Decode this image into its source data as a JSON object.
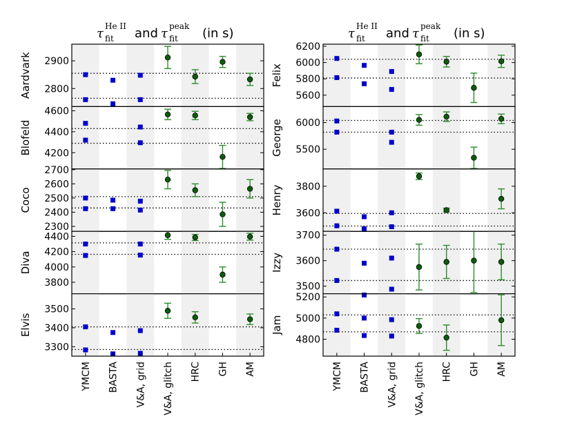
{
  "chart_data": {
    "type": "scatter",
    "title_parts": {
      "tau": "τ",
      "sub": "fit",
      "sup_he": "He II",
      "and": "and",
      "sup_peak": "peak",
      "units": "(in s)"
    },
    "categories": [
      "YMCM",
      "BASTA",
      "V&A, grid",
      "V&A, glitch",
      "HRC",
      "GH",
      "AM"
    ],
    "shaded_columns": [
      0,
      2,
      4,
      6
    ],
    "colors": {
      "he_marker": "#0000cc",
      "peak_marker": "#0d5c0d",
      "peak_errorbar": "#2a8c2a",
      "shade": "#f0f0f0"
    },
    "columns": [
      {
        "name": "left",
        "panels": [
          {
            "star": "Aardvark",
            "ylim": [
              2735,
              2960
            ],
            "yticks": [
              2800,
              2900
            ],
            "ref_lines": [
              2855,
              2765
            ],
            "he_values": [
              [
                2850,
                2760
              ],
              [
                2830,
                2745
              ],
              [
                2848,
                2760
              ],
              null,
              null,
              null,
              null
            ],
            "peak_values": [
              null,
              null,
              null,
              [
                2912,
                40
              ],
              [
                2843,
                25
              ],
              [
                2896,
                20
              ],
              [
                2833,
                22
              ]
            ]
          },
          {
            "star": "Blofeld",
            "ylim": [
              4045,
              4640
            ],
            "yticks": [
              4200,
              4400,
              4600
            ],
            "ref_lines": [
              4430,
              4290
            ],
            "he_values": [
              [
                4480,
                4320
              ],
              null,
              [
                4445,
                4295
              ],
              null,
              null,
              null,
              null
            ],
            "peak_values": [
              null,
              null,
              null,
              [
                4565,
                50
              ],
              [
                4555,
                40
              ],
              [
                4160,
                110
              ],
              [
                4540,
                35
              ]
            ]
          },
          {
            "star": "Coco",
            "ylim": [
              2265,
              2705
            ],
            "yticks": [
              2300,
              2400,
              2500,
              2600,
              2700
            ],
            "ref_lines": [
              2510,
              2430
            ],
            "he_values": [
              [
                2500,
                2425
              ],
              [
                2485,
                2425
              ],
              [
                2478,
                2415
              ],
              null,
              null,
              null,
              null
            ],
            "peak_values": [
              null,
              null,
              null,
              [
                2630,
                65
              ],
              [
                2555,
                45
              ],
              [
                2385,
                85
              ],
              [
                2565,
                65
              ]
            ]
          },
          {
            "star": "Diva",
            "ylim": [
              3650,
              4465
            ],
            "yticks": [
              3800,
              4000,
              4200,
              4400
            ],
            "ref_lines": [
              4315,
              4165
            ],
            "he_values": [
              [
                4300,
                4150
              ],
              null,
              [
                4300,
                4155
              ],
              null,
              null,
              null,
              null
            ],
            "peak_values": [
              null,
              null,
              null,
              [
                4415,
                55
              ],
              [
                4385,
                40
              ],
              [
                3900,
                100
              ],
              [
                4395,
                45
              ]
            ]
          },
          {
            "star": "Elvis",
            "ylim": [
              3250,
              3580
            ],
            "yticks": [
              3300,
              3400,
              3500
            ],
            "ref_lines": [
              3405,
              3285
            ],
            "he_values": [
              [
                3405,
                3283
              ],
              [
                3375,
                3262
              ],
              [
                3385,
                3265
              ],
              null,
              null,
              null,
              null
            ],
            "peak_values": [
              null,
              null,
              null,
              [
                3490,
                40
              ],
              [
                3455,
                30
              ],
              null,
              [
                3445,
                28
              ]
            ]
          }
        ]
      },
      {
        "name": "right",
        "panels": [
          {
            "star": "Felix",
            "ylim": [
              5460,
              6225
            ],
            "yticks": [
              5600,
              5800,
              6000,
              6200
            ],
            "ref_lines": [
              6040,
              5810
            ],
            "he_values": [
              [
                6050,
                5815
              ],
              [
                5965,
                5740
              ],
              [
                5890,
                5670
              ],
              null,
              null,
              null,
              null
            ],
            "peak_values": [
              null,
              null,
              null,
              [
                6100,
                115
              ],
              [
                6010,
                65
              ],
              [
                5690,
                180
              ],
              [
                6015,
                75
              ]
            ]
          },
          {
            "star": "George",
            "ylim": [
              5130,
              6300
            ],
            "yticks": [
              5500,
              6000
            ],
            "ref_lines": [
              6040,
              5820
            ],
            "he_values": [
              [
                6030,
                5820
              ],
              null,
              [
                5820,
                5630
              ],
              null,
              null,
              null,
              null
            ],
            "peak_values": [
              null,
              null,
              null,
              [
                6050,
                100
              ],
              [
                6110,
                90
              ],
              [
                5340,
                200
              ],
              [
                6070,
                90
              ]
            ]
          },
          {
            "star": "Henry",
            "ylim": [
              3460,
              3930
            ],
            "yticks": [
              3600,
              3800
            ],
            "ref_lines": [
              3595,
              3500
            ],
            "he_values": [
              [
                3612,
                3502
              ],
              [
                3570,
                3480
              ],
              [
                3600,
                3495
              ],
              null,
              null,
              null,
              null
            ],
            "peak_values": [
              null,
              null,
              null,
              [
                3875,
                25
              ],
              [
                3620,
                15
              ],
              null,
              [
                3705,
                75
              ]
            ]
          },
          {
            "star": "Izzy",
            "ylim": [
              3470,
              3715
            ],
            "yticks": [
              3500,
              3600,
              3700
            ],
            "ref_lines": [
              3645,
              3522
            ],
            "he_values": [
              [
                3645,
                3522
              ],
              [
                3590,
                3465
              ],
              [
                3610,
                3488
              ],
              null,
              null,
              null,
              null
            ],
            "peak_values": [
              null,
              null,
              null,
              [
                3575,
                90
              ],
              [
                3595,
                65
              ],
              [
                3600,
                125
              ],
              [
                3595,
                70
              ]
            ]
          },
          {
            "star": "Jam",
            "ylim": [
              4640,
              5230
            ],
            "yticks": [
              4800,
              5000,
              5200
            ],
            "ref_lines": [
              5030,
              4870
            ],
            "he_values": [
              [
                5040,
                4885
              ],
              [
                5000,
                4835
              ],
              [
                4985,
                4830
              ],
              null,
              null,
              null,
              null
            ],
            "peak_values": [
              null,
              null,
              null,
              [
                4925,
                70
              ],
              [
                4815,
                120
              ],
              null,
              [
                4980,
                240
              ]
            ]
          }
        ]
      }
    ]
  }
}
